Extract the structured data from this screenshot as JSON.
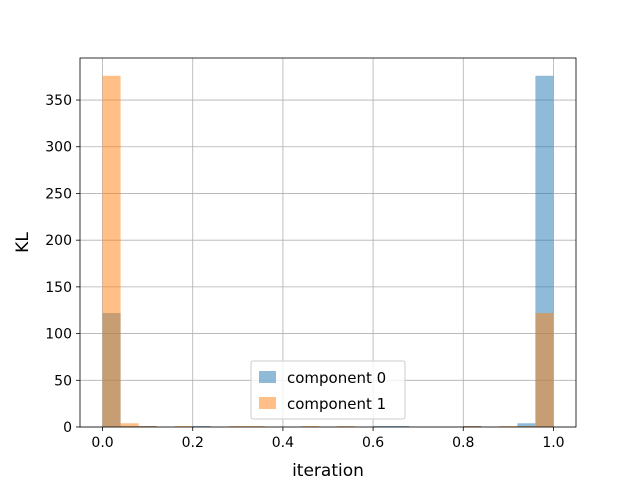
{
  "chart_data": {
    "type": "bar",
    "subtype": "overlapping histogram",
    "xlabel": "iteration",
    "ylabel": "KL",
    "xlim": [
      -0.05,
      1.05
    ],
    "ylim": [
      0,
      395
    ],
    "xticks": [
      0.0,
      0.2,
      0.4,
      0.6,
      0.8,
      1.0
    ],
    "xtick_labels": [
      "0.0",
      "0.2",
      "0.4",
      "0.6",
      "0.8",
      "1.0"
    ],
    "yticks": [
      0,
      50,
      100,
      150,
      200,
      250,
      300,
      350
    ],
    "ytick_labels": [
      "0",
      "50",
      "100",
      "150",
      "200",
      "250",
      "300",
      "350"
    ],
    "grid": true,
    "legend_position": "lower center",
    "bin_edges": [
      0,
      0.04,
      0.08,
      0.12,
      0.16,
      0.2,
      0.24,
      0.28,
      0.32,
      0.36,
      0.4,
      0.44,
      0.48,
      0.52,
      0.56,
      0.6,
      0.64,
      0.68,
      0.72,
      0.76,
      0.8,
      0.84,
      0.88,
      0.92,
      0.96,
      1.0
    ],
    "series": [
      {
        "name": "component 0",
        "color": "#1f77b4",
        "alpha": 0.5,
        "values": [
          122,
          1,
          1,
          0,
          0,
          1,
          0,
          0,
          0,
          0,
          0,
          0,
          0,
          0,
          0,
          1,
          1,
          0,
          0,
          0,
          1,
          0,
          0,
          4,
          376
        ]
      },
      {
        "name": "component 1",
        "color": "#ff7f0e",
        "alpha": 0.5,
        "values": [
          376,
          4,
          1,
          0,
          1,
          0,
          0,
          1,
          1,
          0,
          0,
          1,
          0,
          1,
          0,
          0,
          0,
          0,
          0,
          0,
          1,
          0,
          1,
          1,
          122
        ]
      }
    ]
  }
}
